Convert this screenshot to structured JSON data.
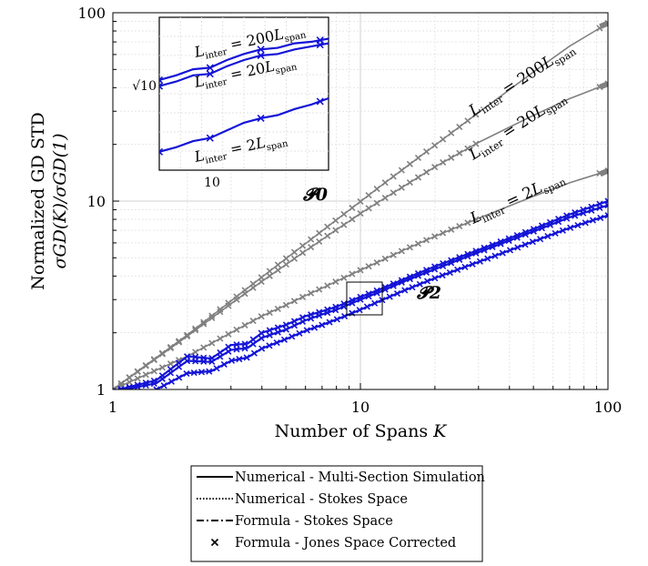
{
  "chart_data": {
    "type": "line",
    "xlabel": "Number of Spans K",
    "ylabel_line1": "Normalized GD STD",
    "ylabel_line2": "σGD(K)/σGD(1)",
    "xscale": "log",
    "yscale": "log",
    "xlim": [
      1,
      100
    ],
    "ylim": [
      1,
      100
    ],
    "xticks": [
      {
        "value": 1,
        "label": "1"
      },
      {
        "value": 10,
        "label": "10"
      },
      {
        "value": 100,
        "label": "100"
      }
    ],
    "yticks": [
      {
        "value": 1,
        "label": "1"
      },
      {
        "value": 10,
        "label": "10"
      },
      {
        "value": 100,
        "label": "100"
      }
    ],
    "grid": true,
    "colors": {
      "gray": "#808080",
      "blue": "#1414d7"
    },
    "group_labels": [
      "𝓟0",
      "𝓟2"
    ],
    "series": [
      {
        "group": "P0",
        "inter": "200",
        "x": [
          1,
          2,
          3,
          4,
          5,
          6,
          7,
          8,
          9,
          10,
          12,
          15,
          20,
          30,
          50,
          70,
          100
        ],
        "y": [
          1,
          1.95,
          2.95,
          3.95,
          4.95,
          5.95,
          6.95,
          7.95,
          8.95,
          9.95,
          11.95,
          14.9,
          19.8,
          29.5,
          48.5,
          66.5,
          88
        ]
      },
      {
        "group": "P0",
        "inter": "20",
        "x": [
          1,
          2,
          3,
          4,
          5,
          6,
          7,
          8,
          9,
          10,
          12,
          15,
          20,
          30,
          50,
          70,
          100
        ],
        "y": [
          1,
          1.92,
          2.85,
          3.75,
          4.6,
          5.45,
          6.25,
          7.05,
          7.8,
          8.6,
          10,
          12,
          15.2,
          20.5,
          28.5,
          35,
          42
        ]
      },
      {
        "group": "P0",
        "inter": "2",
        "x": [
          1,
          2,
          3,
          4,
          5,
          6,
          7,
          8,
          10,
          12,
          15,
          20,
          30,
          50,
          70,
          100
        ],
        "y": [
          1,
          1.5,
          2.0,
          2.45,
          2.8,
          3.15,
          3.45,
          3.75,
          4.3,
          4.8,
          5.5,
          6.5,
          8.1,
          10.6,
          12.5,
          14.5
        ]
      },
      {
        "group": "P2",
        "inter": "200",
        "x": [
          1,
          1.5,
          2,
          2.5,
          3,
          3.5,
          4,
          5,
          6,
          7,
          8,
          10,
          12,
          15,
          20,
          30,
          50,
          70,
          100
        ],
        "y": [
          0.98,
          1.12,
          1.5,
          1.46,
          1.72,
          1.75,
          2.0,
          2.2,
          2.45,
          2.6,
          2.75,
          3.1,
          3.4,
          3.85,
          4.5,
          5.5,
          7.1,
          8.5,
          10
        ]
      },
      {
        "group": "P2",
        "inter": "20",
        "x": [
          1,
          1.5,
          2,
          2.5,
          3,
          3.5,
          4,
          5,
          6,
          7,
          8,
          10,
          12,
          15,
          20,
          30,
          50,
          70,
          100
        ],
        "y": [
          0.97,
          1.08,
          1.42,
          1.4,
          1.62,
          1.66,
          1.88,
          2.08,
          2.33,
          2.5,
          2.65,
          3.0,
          3.3,
          3.75,
          4.35,
          5.35,
          6.9,
          8.2,
          9.5
        ]
      },
      {
        "group": "P2",
        "inter": "2",
        "x": [
          1.5,
          2,
          2.5,
          3,
          3.5,
          4,
          5,
          6,
          7,
          8,
          10,
          12,
          15,
          20,
          30,
          50,
          70,
          100
        ],
        "y": [
          1.0,
          1.22,
          1.25,
          1.42,
          1.48,
          1.65,
          1.85,
          2.05,
          2.2,
          2.35,
          2.65,
          2.95,
          3.35,
          3.9,
          4.75,
          6.1,
          7.2,
          8.4
        ]
      }
    ],
    "annotations": [
      {
        "base": "L",
        "sub1": "inter",
        "mid": " = 200",
        "base2": "L",
        "sub2": "span"
      },
      {
        "base": "L",
        "sub1": "inter",
        "mid": " = 20",
        "base2": "L",
        "sub2": "span"
      },
      {
        "base": "L",
        "sub1": "inter",
        "mid": " = 2",
        "base2": "L",
        "sub2": "span"
      }
    ],
    "inset": {
      "xtick_label": "10",
      "ytick_label": "√10",
      "series": [
        {
          "x": [
            0,
            0.1,
            0.2,
            0.3,
            0.4,
            0.5,
            0.6,
            0.7,
            0.8,
            0.9,
            1
          ],
          "y": [
            0.41,
            0.38,
            0.34,
            0.33,
            0.28,
            0.24,
            0.21,
            0.2,
            0.17,
            0.16,
            0.14
          ]
        },
        {
          "x": [
            0,
            0.1,
            0.2,
            0.3,
            0.4,
            0.5,
            0.6,
            0.7,
            0.8,
            0.9,
            1
          ],
          "y": [
            0.45,
            0.42,
            0.38,
            0.37,
            0.32,
            0.28,
            0.25,
            0.24,
            0.21,
            0.19,
            0.17
          ]
        },
        {
          "x": [
            0,
            0.1,
            0.2,
            0.3,
            0.4,
            0.5,
            0.6,
            0.7,
            0.8,
            0.9,
            1
          ],
          "y": [
            0.88,
            0.85,
            0.81,
            0.79,
            0.74,
            0.69,
            0.66,
            0.64,
            0.6,
            0.57,
            0.53
          ]
        }
      ]
    },
    "legend": {
      "placement": "bottom-center",
      "entries": [
        {
          "label": "Numerical - Multi-Section Simulation",
          "style": "solid"
        },
        {
          "label": "Numerical - Stokes Space",
          "style": "dotted"
        },
        {
          "label": "Formula - Stokes Space",
          "style": "dashdot"
        },
        {
          "label": "Formula - Jones Space Corrected",
          "style": "marker-x"
        }
      ]
    }
  }
}
